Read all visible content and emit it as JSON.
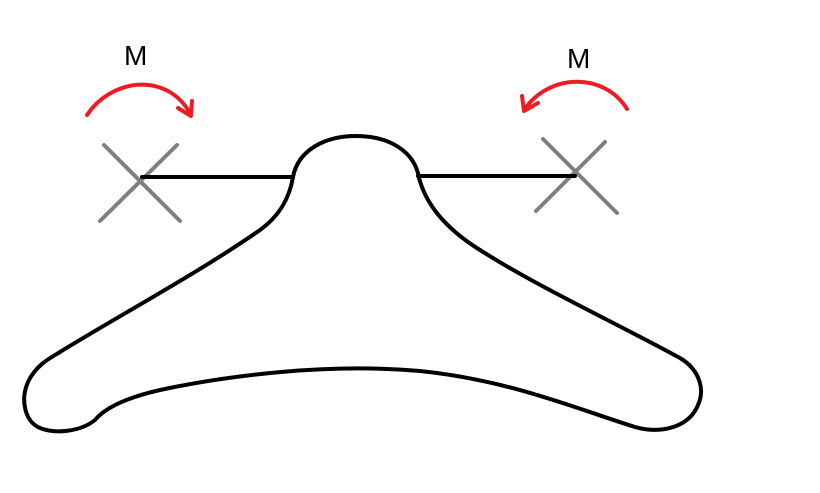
{
  "diagram": {
    "left_moment": {
      "label": "M",
      "direction": "clockwise",
      "color": "#ed1c24"
    },
    "right_moment": {
      "label": "M",
      "direction": "counterclockwise",
      "color": "#ed1c24"
    },
    "colors": {
      "outline": "#000000",
      "support_marker": "#7f7f7f",
      "background": "#ffffff"
    },
    "icons": {
      "left_support": "x-mark",
      "right_support": "x-mark"
    }
  }
}
